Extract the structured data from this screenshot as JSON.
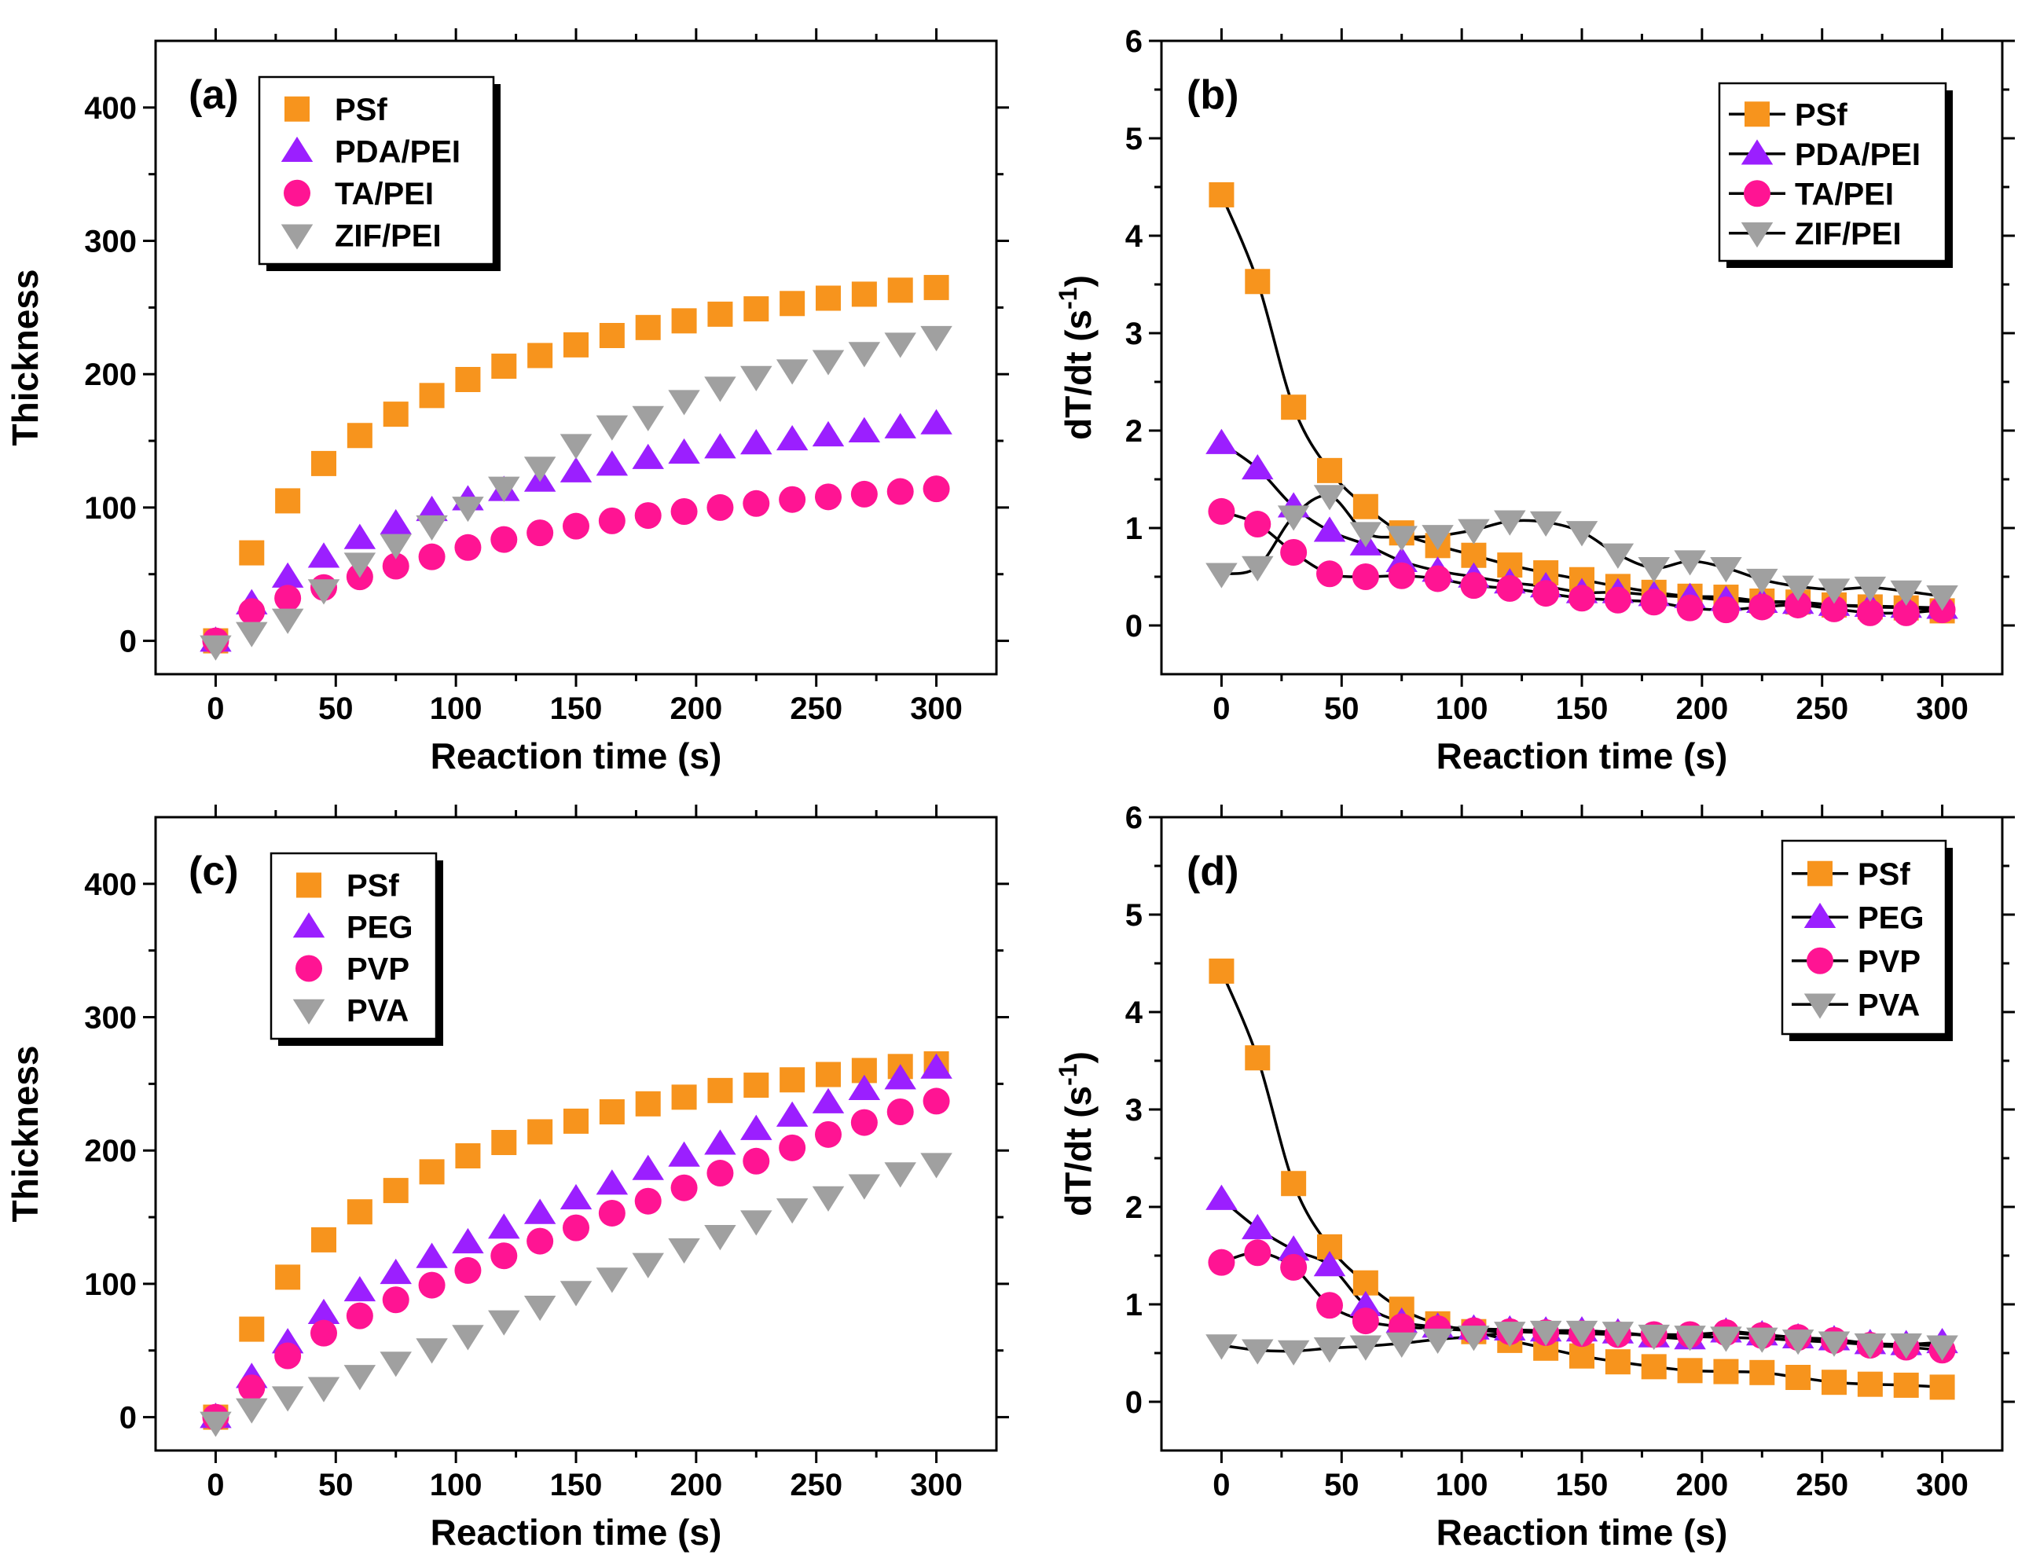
{
  "colors": {
    "PSf": "#F7941D",
    "PDA": "#9B1FFF",
    "TA": "#FF1493",
    "ZIF": "#A0A0A0"
  },
  "chart_data": [
    {
      "panel": "(a)",
      "type": "scatter",
      "xlabel": "Reaction time (s)",
      "ylabel": "Thickness",
      "xlim": [
        -25,
        325
      ],
      "ylim": [
        -25,
        450
      ],
      "xticks": [
        0,
        50,
        100,
        150,
        200,
        250,
        300
      ],
      "yticks": [
        0,
        100,
        200,
        300,
        400
      ],
      "legend_position": "top-left",
      "x": [
        0,
        15,
        30,
        45,
        60,
        75,
        90,
        105,
        120,
        135,
        150,
        165,
        180,
        195,
        210,
        225,
        240,
        255,
        270,
        285,
        300
      ],
      "series": [
        {
          "name": "PSf",
          "marker": "square",
          "color": "#F7941D",
          "values": [
            0,
            66,
            105,
            133,
            154,
            170,
            184,
            196,
            206,
            214,
            222,
            229,
            235,
            240,
            245,
            249,
            253,
            257,
            260,
            263,
            265
          ]
        },
        {
          "name": "PDA/PEI",
          "marker": "triangle-up",
          "color": "#9B1FFF",
          "values": [
            0,
            28,
            48,
            63,
            77,
            88,
            98,
            106,
            113,
            120,
            127,
            132,
            137,
            141,
            145,
            148,
            151,
            154,
            157,
            160,
            163
          ]
        },
        {
          "name": "TA/PEI",
          "marker": "circle",
          "color": "#FF1493",
          "values": [
            0,
            22,
            32,
            40,
            48,
            56,
            63,
            70,
            76,
            81,
            86,
            90,
            94,
            97,
            100,
            103,
            106,
            108,
            110,
            112,
            114
          ]
        },
        {
          "name": "ZIF/PEI",
          "marker": "triangle-down",
          "color": "#A0A0A0",
          "values": [
            -4,
            6,
            16,
            38,
            58,
            72,
            86,
            100,
            115,
            130,
            147,
            161,
            168,
            180,
            190,
            198,
            203,
            210,
            216,
            223,
            228
          ]
        }
      ]
    },
    {
      "panel": "(b)",
      "type": "line",
      "xlabel": "Reaction time (s)",
      "ylabel": "dT/dt (s",
      "ylabel_sup": "-1",
      "ylabel_end": ")",
      "xlim": [
        -25,
        325
      ],
      "ylim": [
        -0.5,
        6
      ],
      "xticks": [
        0,
        50,
        100,
        150,
        200,
        250,
        300
      ],
      "yticks": [
        0,
        1,
        2,
        3,
        4,
        5,
        6
      ],
      "legend_position": "top-right",
      "x": [
        0,
        15,
        30,
        45,
        60,
        75,
        90,
        105,
        120,
        135,
        150,
        165,
        180,
        195,
        210,
        225,
        240,
        255,
        270,
        285,
        300
      ],
      "series": [
        {
          "name": "PSf",
          "marker": "square",
          "color": "#F7941D",
          "values": [
            4.42,
            3.53,
            2.24,
            1.59,
            1.22,
            0.95,
            0.82,
            0.72,
            0.62,
            0.54,
            0.47,
            0.4,
            0.34,
            0.3,
            0.29,
            0.25,
            0.24,
            0.21,
            0.19,
            0.18,
            0.15
          ]
        },
        {
          "name": "PDA/PEI",
          "marker": "triangle-up",
          "color": "#9B1FFF",
          "values": [
            1.87,
            1.61,
            1.22,
            0.97,
            0.83,
            0.66,
            0.56,
            0.5,
            0.44,
            0.4,
            0.34,
            0.34,
            0.31,
            0.29,
            0.26,
            0.24,
            0.23,
            0.21,
            0.2,
            0.19,
            0.18
          ]
        },
        {
          "name": "TA/PEI",
          "marker": "circle",
          "color": "#FF1493",
          "values": [
            1.17,
            1.04,
            0.75,
            0.53,
            0.5,
            0.51,
            0.48,
            0.41,
            0.38,
            0.33,
            0.28,
            0.26,
            0.24,
            0.18,
            0.16,
            0.19,
            0.21,
            0.17,
            0.13,
            0.13,
            0.16
          ]
        },
        {
          "name": "ZIF/PEI",
          "marker": "triangle-down",
          "color": "#A0A0A0",
          "values": [
            0.53,
            0.6,
            1.12,
            1.33,
            0.95,
            0.91,
            0.92,
            0.98,
            1.07,
            1.06,
            0.96,
            0.73,
            0.59,
            0.66,
            0.59,
            0.47,
            0.4,
            0.37,
            0.39,
            0.35,
            0.3
          ]
        }
      ]
    },
    {
      "panel": "(c)",
      "type": "scatter",
      "xlabel": "Reaction time (s)",
      "ylabel": "Thickness",
      "xlim": [
        -25,
        325
      ],
      "ylim": [
        -25,
        450
      ],
      "xticks": [
        0,
        50,
        100,
        150,
        200,
        250,
        300
      ],
      "yticks": [
        0,
        100,
        200,
        300,
        400
      ],
      "legend_position": "top-left",
      "x": [
        0,
        15,
        30,
        45,
        60,
        75,
        90,
        105,
        120,
        135,
        150,
        165,
        180,
        195,
        210,
        225,
        240,
        255,
        270,
        285,
        300
      ],
      "series": [
        {
          "name": "PSf",
          "marker": "square",
          "color": "#F7941D",
          "values": [
            0,
            66,
            105,
            133,
            154,
            170,
            184,
            196,
            206,
            214,
            222,
            229,
            235,
            240,
            245,
            249,
            253,
            257,
            260,
            263,
            265
          ]
        },
        {
          "name": "PEG",
          "marker": "triangle-up",
          "color": "#9B1FFF",
          "values": [
            0,
            30,
            56,
            78,
            95,
            108,
            120,
            131,
            142,
            153,
            164,
            175,
            186,
            196,
            205,
            216,
            226,
            236,
            246,
            254,
            262
          ]
        },
        {
          "name": "PVP",
          "marker": "circle",
          "color": "#FF1493",
          "values": [
            0,
            22,
            46,
            63,
            76,
            88,
            99,
            110,
            121,
            132,
            142,
            153,
            162,
            172,
            183,
            192,
            202,
            212,
            221,
            229,
            237
          ]
        },
        {
          "name": "PVA",
          "marker": "triangle-down",
          "color": "#A0A0A0",
          "values": [
            -4,
            6,
            15,
            22,
            31,
            41,
            51,
            61,
            72,
            83,
            94,
            104,
            115,
            126,
            136,
            147,
            156,
            165,
            174,
            183,
            190
          ]
        }
      ]
    },
    {
      "panel": "(d)",
      "type": "line",
      "xlabel": "Reaction time (s)",
      "ylabel": "dT/dt (s",
      "ylabel_sup": "-1",
      "ylabel_end": ")",
      "xlim": [
        -25,
        325
      ],
      "ylim": [
        -0.5,
        6
      ],
      "xticks": [
        0,
        50,
        100,
        150,
        200,
        250,
        300
      ],
      "yticks": [
        0,
        1,
        2,
        3,
        4,
        5,
        6
      ],
      "legend_position": "top-right",
      "x": [
        0,
        15,
        30,
        45,
        60,
        75,
        90,
        105,
        120,
        135,
        150,
        165,
        180,
        195,
        210,
        225,
        240,
        255,
        270,
        285,
        300
      ],
      "series": [
        {
          "name": "PSf",
          "marker": "square",
          "color": "#F7941D",
          "values": [
            4.42,
            3.53,
            2.24,
            1.59,
            1.22,
            0.95,
            0.8,
            0.72,
            0.63,
            0.55,
            0.47,
            0.41,
            0.36,
            0.32,
            0.31,
            0.3,
            0.25,
            0.2,
            0.18,
            0.17,
            0.15
          ]
        },
        {
          "name": "PEG",
          "marker": "triangle-up",
          "color": "#9B1FFF",
          "values": [
            2.08,
            1.78,
            1.56,
            1.4,
            0.99,
            0.82,
            0.77,
            0.75,
            0.74,
            0.73,
            0.73,
            0.71,
            0.67,
            0.65,
            0.72,
            0.69,
            0.66,
            0.64,
            0.6,
            0.59,
            0.61
          ]
        },
        {
          "name": "PVP",
          "marker": "circle",
          "color": "#FF1493",
          "values": [
            1.43,
            1.53,
            1.38,
            0.99,
            0.83,
            0.77,
            0.75,
            0.73,
            0.72,
            0.71,
            0.7,
            0.69,
            0.69,
            0.69,
            0.71,
            0.68,
            0.66,
            0.63,
            0.58,
            0.56,
            0.53
          ]
        },
        {
          "name": "PVA",
          "marker": "triangle-down",
          "color": "#A0A0A0",
          "values": [
            0.58,
            0.53,
            0.52,
            0.55,
            0.57,
            0.6,
            0.64,
            0.67,
            0.71,
            0.72,
            0.72,
            0.71,
            0.68,
            0.67,
            0.66,
            0.65,
            0.63,
            0.61,
            0.59,
            0.59,
            0.57
          ]
        }
      ]
    }
  ]
}
